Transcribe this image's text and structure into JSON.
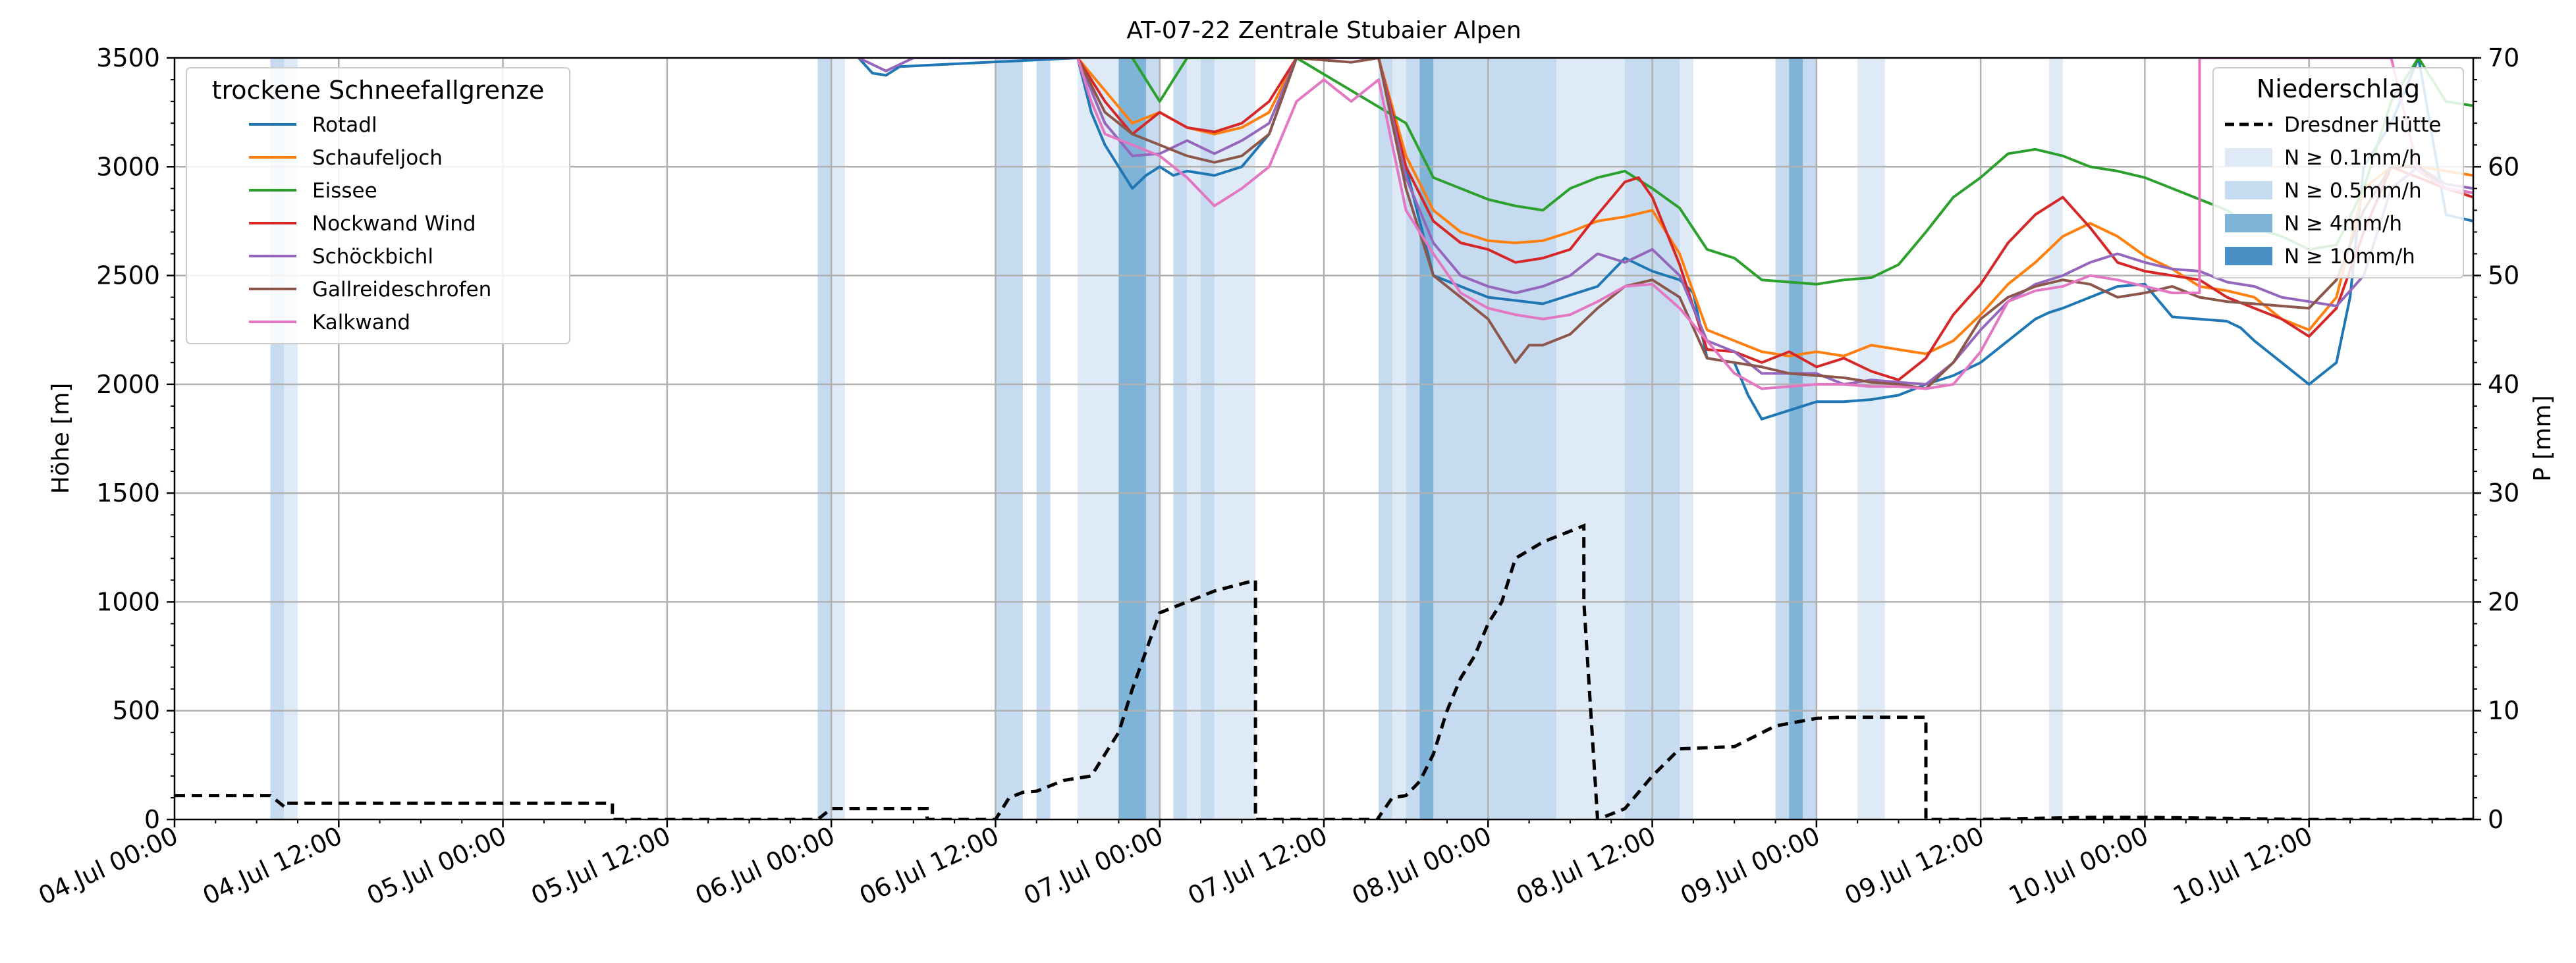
{
  "chart_data": {
    "type": "line",
    "title": "AT-07-22 Zentrale Stubaier Alpen",
    "ylabel": "Höhe [m]",
    "y2label": "P [mm]",
    "xlim": [
      0,
      168
    ],
    "ylim": [
      0,
      3500
    ],
    "y2lim": [
      0,
      70
    ],
    "x_tick_hours": [
      0,
      12,
      24,
      36,
      48,
      60,
      72,
      84,
      96,
      108,
      120,
      132,
      144,
      156
    ],
    "x_tick_labels": [
      "04.Jul 00:00",
      "04.Jul 12:00",
      "05.Jul 00:00",
      "05.Jul 12:00",
      "06.Jul 00:00",
      "06.Jul 12:00",
      "07.Jul 00:00",
      "07.Jul 12:00",
      "08.Jul 00:00",
      "08.Jul 12:00",
      "09.Jul 00:00",
      "09.Jul 12:00",
      "10.Jul 00:00",
      "10.Jul 12:00"
    ],
    "y_ticks": [
      0,
      500,
      1000,
      1500,
      2000,
      2500,
      3000,
      3500
    ],
    "y_tick_labels": [
      "0",
      "500",
      "1000",
      "1500",
      "2000",
      "2500",
      "3000",
      "3500"
    ],
    "y2_ticks": [
      0,
      10,
      20,
      30,
      40,
      50,
      60,
      70
    ],
    "y2_tick_labels": [
      "0",
      "10",
      "20",
      "30",
      "40",
      "50",
      "60",
      "70"
    ],
    "grid": true,
    "legend_left": {
      "title": "trockene Schneefallgrenze",
      "placement": "top-left"
    },
    "legend_right": {
      "title": "Niederschlag",
      "placement": "top-right",
      "entries": [
        {
          "label": "Dresdner Hütte",
          "kind": "dashed-line"
        },
        {
          "label": "N ≥ 0.1mm/h",
          "kind": "patch",
          "color": "#deebf7"
        },
        {
          "label": "N ≥ 0.5mm/h",
          "kind": "patch",
          "color": "#c6dbef"
        },
        {
          "label": "N ≥ 4mm/h",
          "kind": "patch",
          "color": "#7fb4d8"
        },
        {
          "label": "N ≥ 10mm/h",
          "kind": "patch",
          "color": "#4a90c4"
        }
      ]
    },
    "precip_bands": [
      {
        "x0": 7,
        "x1": 8,
        "level": 1
      },
      {
        "x0": 8,
        "x1": 9,
        "level": 0
      },
      {
        "x0": 47,
        "x1": 48,
        "level": 1
      },
      {
        "x0": 48,
        "x1": 49,
        "level": 0
      },
      {
        "x0": 60,
        "x1": 62,
        "level": 1
      },
      {
        "x0": 63,
        "x1": 64,
        "level": 1
      },
      {
        "x0": 66,
        "x1": 69,
        "level": 0
      },
      {
        "x0": 69,
        "x1": 72,
        "level": 1
      },
      {
        "x0": 69,
        "x1": 71,
        "level": 2
      },
      {
        "x0": 73,
        "x1": 74,
        "level": 1
      },
      {
        "x0": 74,
        "x1": 75,
        "level": 0
      },
      {
        "x0": 75,
        "x1": 76,
        "level": 1
      },
      {
        "x0": 76,
        "x1": 79,
        "level": 0
      },
      {
        "x0": 88,
        "x1": 89,
        "level": 1
      },
      {
        "x0": 89,
        "x1": 90,
        "level": 0
      },
      {
        "x0": 90,
        "x1": 101,
        "level": 1
      },
      {
        "x0": 91,
        "x1": 92,
        "level": 2
      },
      {
        "x0": 101,
        "x1": 106,
        "level": 0
      },
      {
        "x0": 106,
        "x1": 110,
        "level": 1
      },
      {
        "x0": 110,
        "x1": 111,
        "level": 0
      },
      {
        "x0": 117,
        "x1": 120,
        "level": 1
      },
      {
        "x0": 118,
        "x1": 119,
        "level": 2
      },
      {
        "x0": 123,
        "x1": 125,
        "level": 0
      },
      {
        "x0": 137,
        "x1": 138,
        "level": 0
      }
    ],
    "precip_series": {
      "name": "Dresdner Hütte",
      "x": [
        0,
        7,
        8,
        8,
        32,
        32,
        47,
        48,
        55,
        55,
        60,
        61,
        62,
        63,
        65,
        67,
        69,
        70,
        72,
        74,
        76,
        79,
        79,
        79,
        88,
        88,
        89,
        90,
        91,
        92,
        93,
        94,
        95,
        96,
        97,
        98,
        100,
        103,
        103,
        104,
        105,
        106,
        107,
        108,
        110,
        114,
        117,
        120,
        122,
        124,
        128,
        128,
        128,
        132,
        136,
        140,
        144,
        150,
        156,
        168
      ],
      "y": [
        2.2,
        2.2,
        1.2,
        1.5,
        1.5,
        0,
        0,
        1.0,
        1.0,
        0,
        0,
        2.0,
        2.5,
        2.6,
        3.6,
        4.0,
        8.0,
        12.0,
        19.0,
        20.0,
        21.0,
        22.0,
        14.0,
        0,
        0,
        0.2,
        2.0,
        2.2,
        3.5,
        6.0,
        10.0,
        13.0,
        15.0,
        18.0,
        20.0,
        24.0,
        25.5,
        27.0,
        20.0,
        0,
        0.5,
        1.0,
        2.5,
        4.0,
        6.5,
        6.7,
        8.6,
        9.3,
        9.4,
        9.4,
        9.4,
        6.0,
        0,
        0,
        0.1,
        0.2,
        0.2,
        0.1,
        0,
        0
      ]
    },
    "series": [
      {
        "name": "Rotadl",
        "color": "#1f77b4",
        "x": [
          50,
          51,
          52,
          53,
          66,
          67,
          68,
          69,
          70,
          71,
          72,
          73,
          74,
          76,
          78,
          80,
          82,
          84,
          88,
          90,
          92,
          94,
          96,
          100,
          104,
          106,
          108,
          110,
          111,
          112,
          114,
          115,
          116,
          118,
          120,
          121,
          122,
          124,
          126,
          128,
          130,
          132,
          134,
          136,
          137,
          138,
          140,
          142,
          144,
          146,
          148,
          150,
          151,
          152,
          154,
          156,
          158,
          159,
          160,
          162,
          164,
          166,
          168
        ],
        "y": [
          3500,
          3430,
          3420,
          3460,
          3500,
          3250,
          3100,
          3000,
          2900,
          2960,
          3000,
          2960,
          2980,
          2960,
          3000,
          3150,
          3500,
          3500,
          3500,
          3000,
          2500,
          2450,
          2400,
          2370,
          2450,
          2580,
          2520,
          2480,
          2420,
          2120,
          2100,
          1950,
          1840,
          1880,
          1920,
          1920,
          1920,
          1930,
          1950,
          2000,
          2040,
          2100,
          2200,
          2300,
          2330,
          2350,
          2400,
          2450,
          2460,
          2310,
          2300,
          2290,
          2260,
          2200,
          2100,
          2000,
          2100,
          2400,
          3000,
          3200,
          3500,
          2780,
          2750
        ]
      },
      {
        "name": "Schaufeljoch",
        "color": "#ff7f0e",
        "x": [
          66,
          68,
          70,
          72,
          74,
          76,
          78,
          80,
          82,
          88,
          90,
          92,
          94,
          96,
          98,
          100,
          102,
          104,
          106,
          108,
          110,
          112,
          114,
          116,
          118,
          120,
          122,
          124,
          126,
          128,
          130,
          132,
          134,
          136,
          138,
          140,
          142,
          144,
          146,
          148,
          150,
          152,
          154,
          156,
          158,
          160,
          162,
          164,
          166,
          168
        ],
        "y": [
          3500,
          3350,
          3200,
          3250,
          3180,
          3150,
          3180,
          3250,
          3500,
          3500,
          3050,
          2800,
          2700,
          2660,
          2650,
          2660,
          2700,
          2750,
          2770,
          2800,
          2600,
          2250,
          2200,
          2150,
          2130,
          2150,
          2130,
          2180,
          2160,
          2140,
          2200,
          2320,
          2460,
          2560,
          2680,
          2740,
          2680,
          2590,
          2530,
          2450,
          2430,
          2400,
          2300,
          2250,
          2400,
          2900,
          3000,
          3000,
          2980,
          2960
        ]
      },
      {
        "name": "Eissee",
        "color": "#2ca02c",
        "x": [
          70,
          72,
          74,
          76,
          78,
          80,
          82,
          90,
          92,
          94,
          96,
          98,
          100,
          102,
          104,
          106,
          108,
          110,
          112,
          114,
          116,
          118,
          120,
          122,
          124,
          126,
          128,
          130,
          132,
          134,
          136,
          138,
          140,
          142,
          144,
          146,
          148,
          150,
          152,
          154,
          156,
          158,
          160,
          162,
          164,
          166,
          168
        ],
        "y": [
          3500,
          3300,
          3500,
          3500,
          3500,
          3500,
          3500,
          3200,
          2950,
          2900,
          2850,
          2820,
          2800,
          2900,
          2950,
          2980,
          2900,
          2810,
          2620,
          2580,
          2480,
          2470,
          2460,
          2480,
          2490,
          2550,
          2700,
          2860,
          2950,
          3060,
          3080,
          3050,
          3000,
          2980,
          2950,
          2900,
          2850,
          2800,
          2720,
          2680,
          2620,
          2640,
          2900,
          3300,
          3500,
          3300,
          3280
        ]
      },
      {
        "name": "Nockwand Wind",
        "color": "#d62728",
        "x": [
          66,
          68,
          70,
          72,
          74,
          76,
          78,
          80,
          82,
          88,
          90,
          92,
          94,
          96,
          98,
          100,
          102,
          104,
          106,
          107,
          108,
          110,
          112,
          114,
          116,
          118,
          120,
          122,
          124,
          126,
          128,
          130,
          132,
          134,
          136,
          138,
          140,
          142,
          144,
          146,
          148,
          150,
          152,
          154,
          156,
          158,
          160,
          162,
          164,
          166,
          168
        ],
        "y": [
          3500,
          3300,
          3150,
          3250,
          3180,
          3160,
          3200,
          3300,
          3500,
          3500,
          3000,
          2750,
          2650,
          2620,
          2560,
          2580,
          2620,
          2780,
          2930,
          2950,
          2860,
          2550,
          2160,
          2150,
          2100,
          2150,
          2080,
          2120,
          2060,
          2020,
          2120,
          2320,
          2460,
          2650,
          2780,
          2860,
          2720,
          2560,
          2520,
          2500,
          2480,
          2400,
          2350,
          2300,
          2220,
          2350,
          2700,
          3000,
          2950,
          2900,
          2860
        ]
      },
      {
        "name": "Schöckbichl",
        "color": "#9467bd",
        "x": [
          50,
          52,
          54,
          66,
          68,
          70,
          72,
          74,
          76,
          78,
          80,
          82,
          88,
          90,
          92,
          94,
          96,
          98,
          100,
          102,
          104,
          106,
          108,
          110,
          112,
          114,
          116,
          118,
          120,
          122,
          124,
          126,
          128,
          130,
          132,
          134,
          136,
          138,
          140,
          142,
          144,
          146,
          148,
          150,
          152,
          154,
          156,
          158,
          160,
          162,
          164,
          166,
          168
        ],
        "y": [
          3500,
          3440,
          3500,
          3500,
          3200,
          3050,
          3060,
          3120,
          3060,
          3120,
          3200,
          3500,
          3500,
          2950,
          2650,
          2500,
          2450,
          2420,
          2450,
          2500,
          2600,
          2560,
          2620,
          2500,
          2200,
          2150,
          2050,
          2050,
          2050,
          2000,
          2020,
          2010,
          2000,
          2100,
          2250,
          2380,
          2460,
          2500,
          2560,
          2600,
          2560,
          2530,
          2520,
          2470,
          2450,
          2400,
          2380,
          2360,
          2500,
          2900,
          3000,
          2920,
          2900
        ]
      },
      {
        "name": "Gallreideschrofen",
        "color": "#8c564b",
        "x": [
          66,
          68,
          70,
          72,
          74,
          76,
          78,
          80,
          82,
          86,
          88,
          90,
          92,
          94,
          96,
          97,
          98,
          99,
          100,
          102,
          104,
          106,
          108,
          110,
          112,
          114,
          116,
          118,
          120,
          122,
          124,
          126,
          128,
          130,
          132,
          134,
          136,
          138,
          140,
          142,
          144,
          146,
          148,
          150,
          152,
          154,
          156,
          158,
          160,
          162,
          164,
          166,
          168
        ],
        "y": [
          3500,
          3250,
          3150,
          3100,
          3050,
          3020,
          3050,
          3150,
          3500,
          3480,
          3500,
          2900,
          2500,
          2400,
          2300,
          2200,
          2100,
          2180,
          2180,
          2230,
          2350,
          2450,
          2480,
          2400,
          2120,
          2100,
          2080,
          2050,
          2040,
          2030,
          2010,
          2000,
          1980,
          2100,
          2300,
          2400,
          2450,
          2480,
          2460,
          2400,
          2420,
          2450,
          2400,
          2380,
          2370,
          2360,
          2350,
          2480,
          2800,
          3000,
          3000,
          2900,
          2880
        ]
      },
      {
        "name": "Kalkwand",
        "color": "#e377c2",
        "x": [
          66,
          67,
          68,
          70,
          72,
          74,
          76,
          78,
          80,
          82,
          84,
          86,
          88,
          90,
          92,
          94,
          96,
          98,
          100,
          102,
          104,
          106,
          108,
          110,
          112,
          114,
          116,
          118,
          120,
          122,
          124,
          126,
          128,
          130,
          132,
          134,
          136,
          138,
          140,
          142,
          144,
          146,
          148,
          148,
          150,
          152,
          154,
          156,
          158,
          160,
          162,
          164,
          166,
          168
        ],
        "y": [
          3500,
          3300,
          3150,
          3100,
          3050,
          2950,
          2820,
          2900,
          3000,
          3300,
          3400,
          3300,
          3400,
          2800,
          2600,
          2420,
          2350,
          2320,
          2300,
          2320,
          2380,
          2450,
          2460,
          2350,
          2200,
          2050,
          1980,
          1990,
          2000,
          2000,
          1990,
          1990,
          1980,
          2000,
          2150,
          2380,
          2430,
          2450,
          2500,
          2480,
          2450,
          2420,
          2420,
          3500,
          3500,
          3500,
          3500,
          3500,
          3500,
          3500,
          3500,
          2980,
          2900,
          2880
        ]
      }
    ]
  }
}
